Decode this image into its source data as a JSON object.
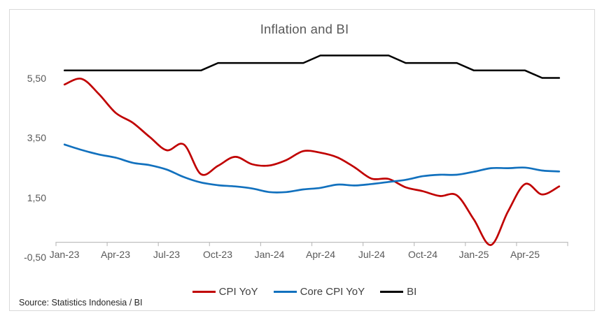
{
  "title": "Inflation and BI",
  "source_note": "Source: Statistics Indonesia / BI",
  "colors": {
    "cpi_yoy": "#C00000",
    "core_cpi_yoy": "#1271BE",
    "bi_rate": "#000000",
    "title_text": "#595959",
    "axis_text": "#595959",
    "legend_text": "#3F3F3F",
    "source_text": "#262626",
    "frame_border": "#D9D9D9",
    "axis_line": "#BFBFBF"
  },
  "legend_items": [
    "CPI YoY",
    "Core CPI YoY",
    "BI"
  ],
  "chart_data": {
    "type": "line",
    "title": "Inflation and BI",
    "grid": false,
    "legend_position": "bottom",
    "categories": [
      "Jan-23",
      "Feb-23",
      "Mar-23",
      "Apr-23",
      "May-23",
      "Jun-23",
      "Jul-23",
      "Aug-23",
      "Sep-23",
      "Oct-23",
      "Nov-23",
      "Dec-23",
      "Jan-24",
      "Feb-24",
      "Mar-24",
      "Apr-24",
      "May-24",
      "Jun-24",
      "Jul-24",
      "Aug-24",
      "Sep-24",
      "Oct-24",
      "Nov-24",
      "Dec-24",
      "Jan-25",
      "Feb-25",
      "Mar-25",
      "Apr-25",
      "May-25",
      "Jun-25"
    ],
    "x_axis": {
      "tick_label_every": 3,
      "tick_labels": [
        "Jan-23",
        "Apr-23",
        "Jul-23",
        "Oct-23",
        "Jan-24",
        "Apr-24",
        "Jul-24",
        "Oct-24",
        "Jan-25",
        "Apr-25"
      ]
    },
    "y_axis": {
      "min": -0.5,
      "max": 6.5,
      "ticks": [
        -0.5,
        1.5,
        3.5,
        5.5
      ],
      "tick_labels": [
        "-0,50",
        "1,50",
        "3,50",
        "5,50"
      ],
      "axis_cross_value": 0
    },
    "series": [
      {
        "name": "CPI YoY",
        "color": "#C00000",
        "smooth": true,
        "width": 2.7,
        "values": [
          5.28,
          5.47,
          4.97,
          4.33,
          4.0,
          3.52,
          3.08,
          3.27,
          2.28,
          2.56,
          2.86,
          2.61,
          2.57,
          2.75,
          3.05,
          3.0,
          2.84,
          2.51,
          2.13,
          2.12,
          1.84,
          1.71,
          1.55,
          1.57,
          0.76,
          -0.09,
          1.03,
          1.95,
          1.6,
          1.87
        ]
      },
      {
        "name": "Core CPI YoY",
        "color": "#1271BE",
        "smooth": true,
        "width": 2.7,
        "values": [
          3.27,
          3.09,
          2.94,
          2.83,
          2.66,
          2.58,
          2.43,
          2.18,
          2.0,
          1.91,
          1.87,
          1.8,
          1.68,
          1.68,
          1.77,
          1.82,
          1.93,
          1.9,
          1.95,
          2.02,
          2.09,
          2.21,
          2.26,
          2.26,
          2.36,
          2.48,
          2.48,
          2.5,
          2.4,
          2.37
        ]
      },
      {
        "name": "BI",
        "color": "#000000",
        "smooth": false,
        "width": 2.5,
        "values": [
          5.75,
          5.75,
          5.75,
          5.75,
          5.75,
          5.75,
          5.75,
          5.75,
          5.75,
          6.0,
          6.0,
          6.0,
          6.0,
          6.0,
          6.0,
          6.25,
          6.25,
          6.25,
          6.25,
          6.25,
          6.0,
          6.0,
          6.0,
          6.0,
          5.75,
          5.75,
          5.75,
          5.75,
          5.5,
          5.5
        ]
      }
    ]
  }
}
